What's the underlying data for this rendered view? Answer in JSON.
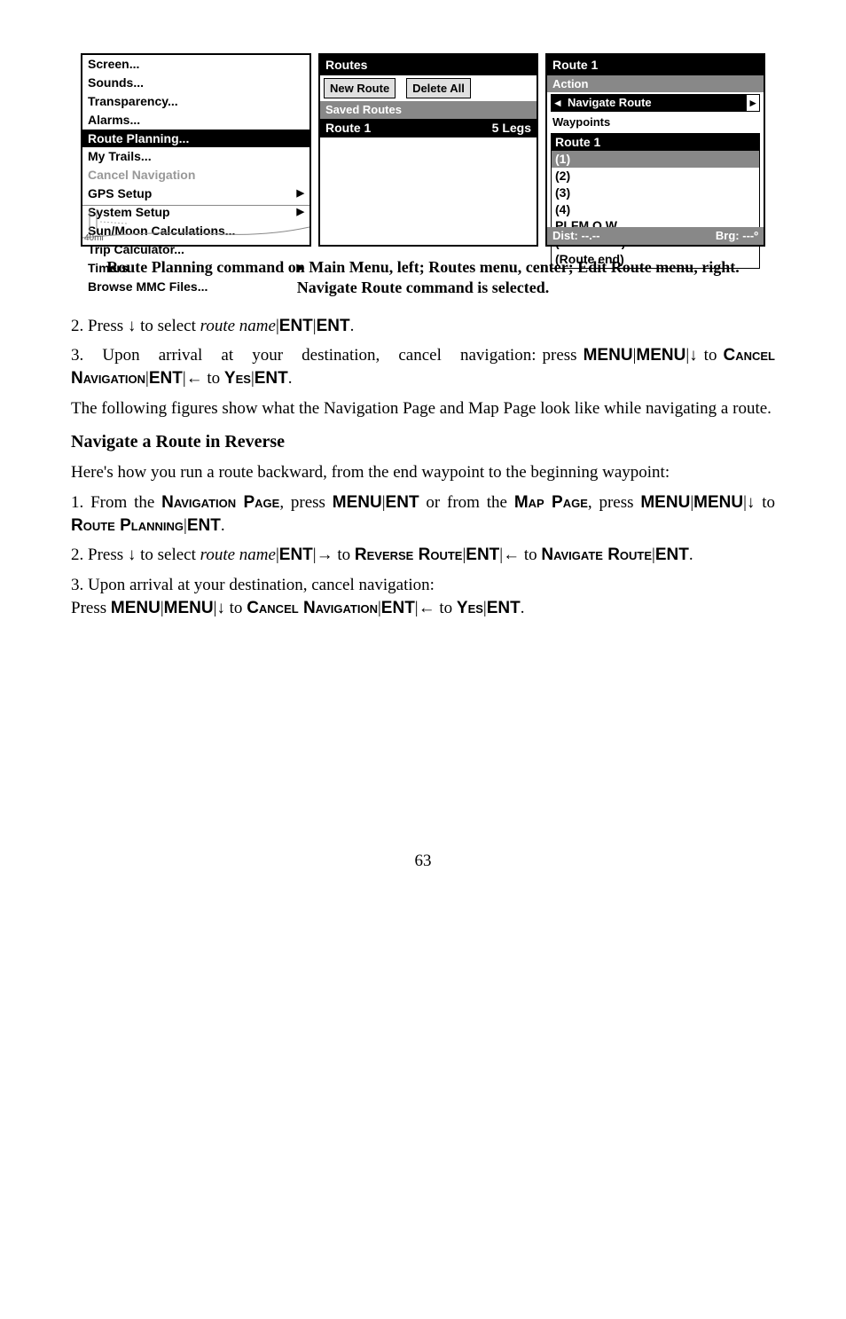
{
  "screen1": {
    "items": [
      {
        "label": "Screen...",
        "sel": false,
        "sub": false
      },
      {
        "label": "Sounds...",
        "sel": false,
        "sub": false
      },
      {
        "label": "Transparency...",
        "sel": false,
        "sub": false
      },
      {
        "label": "Alarms...",
        "sel": false,
        "sub": false
      },
      {
        "label": "Route Planning...",
        "sel": true,
        "sub": false
      },
      {
        "label": "My Trails...",
        "sel": false,
        "sub": false
      },
      {
        "label": "Cancel Navigation",
        "sel": false,
        "sub": false,
        "dis": true
      },
      {
        "label": "GPS Setup",
        "sel": false,
        "sub": true
      },
      {
        "label": "System Setup",
        "sel": false,
        "sub": true
      },
      {
        "label": "Sun/Moon Calculations...",
        "sel": false,
        "sub": false
      },
      {
        "label": "Trip Calculator...",
        "sel": false,
        "sub": false
      },
      {
        "label": "Timers",
        "sel": false,
        "sub": true
      },
      {
        "label": "Browse MMC Files...",
        "sel": false,
        "sub": false
      }
    ],
    "map_label": "40mi"
  },
  "screen2": {
    "title": "Routes",
    "btn_new": "New Route",
    "btn_del": "Delete All",
    "section": "Saved Routes",
    "row_name": "Route 1",
    "row_legs": "5 Legs"
  },
  "screen3": {
    "title": "Route 1",
    "action_label": "Action",
    "action_value": "Navigate Route",
    "wp_label": "Waypoints",
    "box_title": "Route 1",
    "lines": [
      "(1)",
      "(2)",
      "(3)",
      "(4)",
      "PLFM Q W",
      "(Press ENT)",
      "(Route end)"
    ],
    "dist": "Dist: --.--",
    "brg": "Brg: ---º"
  },
  "caption": "Route Planning command on Main Menu, left; Routes  menu, center; Edit Route menu, right. Navigate Route command is selected.",
  "para2_a": "2. Press ↓ to select ",
  "para2_i": "route name",
  "para2_b": "|",
  "para2_ent": "ENT",
  "para3_a": "3.   Upon   arrival   at   your   destination,   cancel   navigation: press ",
  "menu": "MENU",
  "cancel_nav": "Cancel Navigation",
  "yes": "Yes",
  "para4": "The following figures show what the Navigation Page and Map Page look like while navigating a route.",
  "heading": "Navigate a Route in Reverse",
  "para5": "Here's how you run a route backward, from the end waypoint to the beginning waypoint:",
  "para6_a": "1. From the ",
  "nav_page": "Navigation Page",
  "para6_b": ", press ",
  "or_from": " or from the ",
  "map_page": "Map Page",
  "route_plan": "Route Planning",
  "para7_a": "2. Press ↓ to select ",
  "rev_route": "Reverse Route",
  "nav_route": "Navigate Route",
  "para8": "3. Upon arrival at your destination, cancel navigation:",
  "pagenum": "63"
}
